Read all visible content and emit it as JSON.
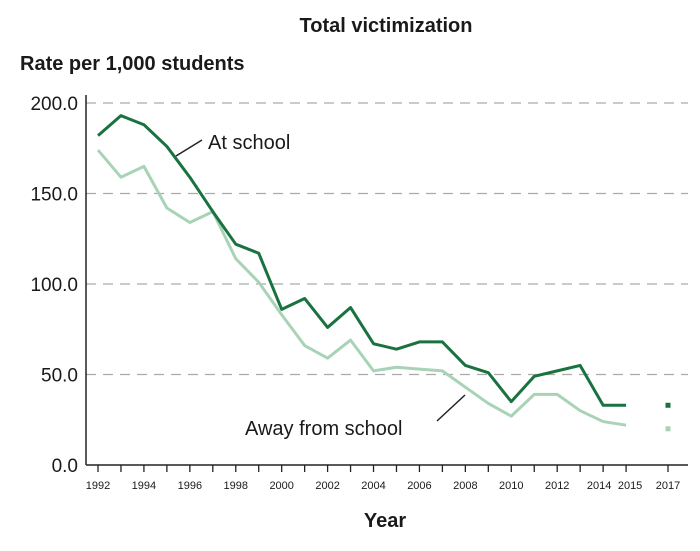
{
  "chart_data": {
    "type": "line",
    "title": "Total victimization",
    "ylabel": "Rate per 1,000 students",
    "xlabel": "Year",
    "ylim": [
      0,
      200
    ],
    "yticks": [
      "0.0",
      "50.0",
      "100.0",
      "150.0",
      "200.0"
    ],
    "xtick_labels": [
      "1992",
      "1994",
      "1996",
      "1998",
      "2000",
      "2002",
      "2004",
      "2006",
      "2008",
      "2010",
      "2012",
      "2014",
      "2015",
      "2017"
    ],
    "grid": "horizontal dashed",
    "x": [
      1992,
      1993,
      1994,
      1995,
      1996,
      1997,
      1998,
      1999,
      2000,
      2001,
      2002,
      2003,
      2004,
      2005,
      2006,
      2007,
      2008,
      2009,
      2010,
      2011,
      2012,
      2013,
      2014,
      2015
    ],
    "series": [
      {
        "name": "At school",
        "color": "#1a7240",
        "values": [
          182,
          193,
          188,
          176,
          159,
          140,
          122,
          117,
          86,
          92,
          76,
          87,
          67,
          64,
          68,
          68,
          55,
          51,
          35,
          49,
          52,
          55,
          33,
          33
        ],
        "extra_point": {
          "x": 2017,
          "y": 33
        }
      },
      {
        "name": "Away from school",
        "color": "#a9d3b6",
        "values": [
          174,
          159,
          165,
          142,
          134,
          140,
          114,
          101,
          83,
          66,
          59,
          69,
          52,
          54,
          53,
          52,
          43,
          34,
          27,
          39,
          39,
          30,
          24,
          22
        ],
        "extra_point": {
          "x": 2017,
          "y": 20
        }
      }
    ]
  }
}
